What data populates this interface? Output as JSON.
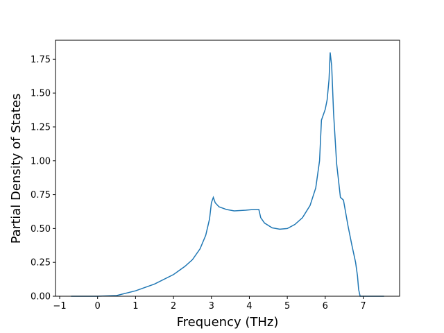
{
  "chart_data": {
    "type": "line",
    "x_label": "Frequency (THz)",
    "y_label": "Partial Density of States",
    "x": [
      -0.7,
      0,
      0.5,
      1,
      1.5,
      2,
      2.3,
      2.5,
      2.7,
      2.85,
      2.95,
      3.0,
      3.05,
      3.1,
      3.2,
      3.4,
      3.6,
      3.9,
      4.1,
      4.25,
      4.3,
      4.4,
      4.6,
      4.8,
      5.0,
      5.2,
      5.4,
      5.6,
      5.75,
      5.85,
      5.9,
      6.0,
      6.05,
      6.1,
      6.13,
      6.17,
      6.22,
      6.3,
      6.4,
      6.48,
      6.6,
      6.7,
      6.8,
      6.85,
      6.88,
      6.92,
      7.55
    ],
    "series": [
      {
        "color": "#1f77b4",
        "values": [
          0,
          0,
          0.005,
          0.04,
          0.09,
          0.16,
          0.22,
          0.27,
          0.35,
          0.45,
          0.57,
          0.69,
          0.73,
          0.69,
          0.66,
          0.64,
          0.63,
          0.635,
          0.64,
          0.64,
          0.58,
          0.54,
          0.505,
          0.495,
          0.5,
          0.53,
          0.58,
          0.67,
          0.8,
          1.0,
          1.3,
          1.38,
          1.45,
          1.6,
          1.8,
          1.7,
          1.35,
          0.98,
          0.73,
          0.71,
          0.52,
          0.38,
          0.25,
          0.15,
          0.05,
          0,
          0
        ]
      }
    ],
    "xlim": [
      -1.11,
      7.96
    ],
    "ylim": [
      0,
      1.89
    ],
    "xticks": [
      {
        "value": -1,
        "label": "−1"
      },
      0,
      1,
      2,
      3,
      4,
      5,
      6,
      7
    ],
    "yticks": [
      {
        "value": 0,
        "label": "0.00"
      },
      {
        "value": 0.25,
        "label": "0.25"
      },
      {
        "value": 0.5,
        "label": "0.50"
      },
      {
        "value": 0.75,
        "label": "0.75"
      },
      {
        "value": 1,
        "label": "1.00"
      },
      {
        "value": 1.25,
        "label": "1.25"
      },
      {
        "value": 1.5,
        "label": "1.50"
      },
      {
        "value": 1.75,
        "label": "1.75"
      }
    ]
  }
}
